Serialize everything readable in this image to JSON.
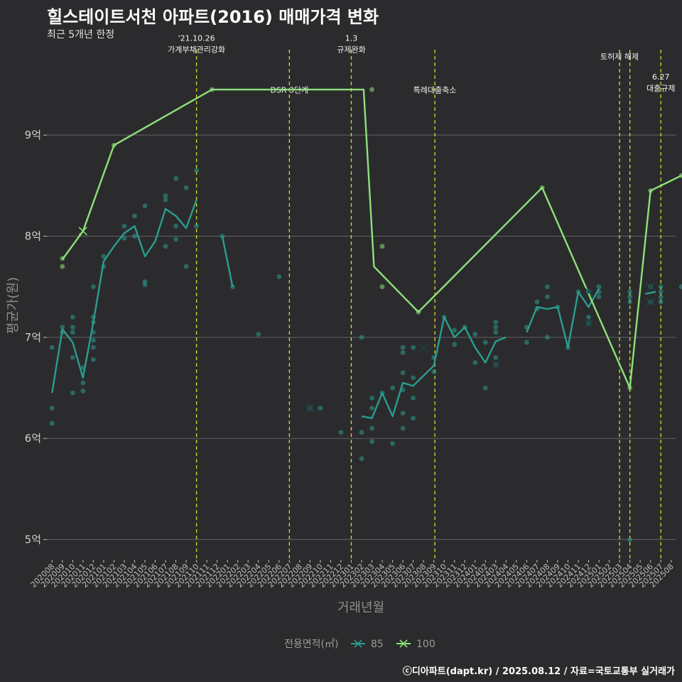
{
  "title": "힐스테이트서천 아파트(2016) 매매가격 변화",
  "subtitle": "최근 5개년 한정",
  "caption": "ⓒ디아파트(dapt.kr) / 2025.08.12 / 자료=국토교통부 실거래가",
  "chart_data": {
    "type": "line",
    "xlabel": "거래년월",
    "ylabel": "평균가(원)",
    "ylim": [
      4.8,
      9.9
    ],
    "yticks": [
      {
        "v": 5,
        "label": "5억"
      },
      {
        "v": 6,
        "label": "6억"
      },
      {
        "v": 7,
        "label": "7억"
      },
      {
        "v": 8,
        "label": "8억"
      },
      {
        "v": 9,
        "label": "9억"
      }
    ],
    "categories": [
      "202008",
      "202009",
      "202010",
      "202011",
      "202012",
      "202101",
      "202102",
      "202103",
      "202104",
      "202105",
      "202106",
      "202107",
      "202108",
      "202109",
      "202110",
      "202111",
      "202112",
      "202201",
      "202202",
      "202203",
      "202204",
      "202205",
      "202206",
      "202207",
      "202208",
      "202209",
      "202210",
      "202211",
      "202212",
      "202301",
      "202302",
      "202303",
      "202304",
      "202305",
      "202306",
      "202307",
      "202308",
      "202309",
      "202310",
      "202311",
      "202312",
      "202401",
      "202402",
      "202403",
      "202404",
      "202405",
      "202406",
      "202407",
      "202408",
      "202409",
      "202410",
      "202411",
      "202412",
      "202501",
      "202502",
      "202503",
      "202504",
      "202505",
      "202506",
      "202507",
      "202508"
    ],
    "legend_title": "전용면적(㎡)",
    "legend_position": "bottom",
    "series": [
      {
        "name": "85",
        "color": "#2a9d8f",
        "line_segments": [
          [
            [
              0,
              6.45
            ],
            [
              1,
              7.08
            ],
            [
              2,
              6.95
            ],
            [
              3,
              6.6
            ],
            [
              4,
              7.15
            ],
            [
              5,
              7.75
            ],
            [
              6,
              7.9
            ],
            [
              7,
              8.03
            ],
            [
              8,
              8.1
            ],
            [
              9,
              7.8
            ],
            [
              10,
              7.95
            ],
            [
              11,
              8.27
            ],
            [
              12,
              8.2
            ],
            [
              13,
              8.08
            ],
            [
              14,
              8.36
            ]
          ],
          [
            [
              16.5,
              8.0
            ],
            [
              17.5,
              7.5
            ]
          ],
          [
            [
              30,
              6.22
            ],
            [
              31,
              6.2
            ],
            [
              32,
              6.45
            ],
            [
              33,
              6.22
            ],
            [
              34,
              6.55
            ],
            [
              35,
              6.52
            ],
            [
              36,
              6.62
            ],
            [
              37,
              6.72
            ],
            [
              38,
              7.2
            ],
            [
              39,
              7.0
            ],
            [
              40,
              7.1
            ],
            [
              41,
              6.9
            ],
            [
              42,
              6.75
            ],
            [
              43,
              6.96
            ],
            [
              44,
              7.0
            ]
          ],
          [
            [
              46,
              7.05
            ],
            [
              47,
              7.3
            ],
            [
              48,
              7.28
            ],
            [
              49,
              7.3
            ],
            [
              50,
              6.9
            ],
            [
              51,
              7.45
            ],
            [
              52,
              7.3
            ],
            [
              53,
              7.48
            ]
          ],
          [
            [
              57.5,
              7.43
            ],
            [
              58.5,
              7.45
            ]
          ]
        ],
        "points": [
          [
            0,
            6.9
          ],
          [
            0,
            6.3
          ],
          [
            0,
            6.15
          ],
          [
            1,
            7.1
          ],
          [
            1,
            7.05
          ],
          [
            2,
            7.2
          ],
          [
            2,
            7.05
          ],
          [
            2,
            6.8
          ],
          [
            2,
            6.45
          ],
          [
            2,
            7.1
          ],
          [
            3,
            6.7
          ],
          [
            3,
            6.55
          ],
          [
            3,
            6.47
          ],
          [
            4,
            7.5
          ],
          [
            4,
            7.2
          ],
          [
            4,
            7.15
          ],
          [
            4,
            7.05
          ],
          [
            4,
            6.97
          ],
          [
            4,
            6.9
          ],
          [
            4,
            6.78
          ],
          [
            5,
            7.8
          ],
          [
            5,
            7.7
          ],
          [
            7,
            8.1
          ],
          [
            7,
            7.98
          ],
          [
            8,
            8.2
          ],
          [
            8,
            8.0
          ],
          [
            9,
            8.3
          ],
          [
            9,
            7.55
          ],
          [
            9,
            7.52
          ],
          [
            11,
            8.4
          ],
          [
            11,
            8.36
          ],
          [
            11,
            7.9
          ],
          [
            12,
            8.57
          ],
          [
            12,
            8.1
          ],
          [
            12,
            7.97
          ],
          [
            13,
            8.48
          ],
          [
            13,
            7.7
          ],
          [
            14,
            8.65
          ],
          [
            14,
            8.1
          ],
          [
            16.5,
            8.0
          ],
          [
            17.5,
            7.5
          ],
          [
            20,
            7.03
          ],
          [
            22,
            7.6
          ],
          [
            25,
            6.3
          ],
          [
            26,
            6.3
          ],
          [
            28,
            6.06
          ],
          [
            30,
            7.0
          ],
          [
            30,
            6.06
          ],
          [
            30,
            5.8
          ],
          [
            31,
            6.4
          ],
          [
            31,
            6.3
          ],
          [
            31,
            6.1
          ],
          [
            31,
            5.97
          ],
          [
            32,
            6.45
          ],
          [
            33,
            6.5
          ],
          [
            33,
            5.95
          ],
          [
            34,
            6.9
          ],
          [
            34,
            6.85
          ],
          [
            34,
            6.65
          ],
          [
            34,
            6.48
          ],
          [
            34,
            6.25
          ],
          [
            34,
            6.1
          ],
          [
            35,
            6.9
          ],
          [
            35,
            6.6
          ],
          [
            35,
            6.4
          ],
          [
            35,
            6.2
          ],
          [
            37,
            6.8
          ],
          [
            37,
            6.66
          ],
          [
            38,
            7.2
          ],
          [
            39,
            7.07
          ],
          [
            39,
            6.93
          ],
          [
            40,
            7.1
          ],
          [
            41,
            7.03
          ],
          [
            41,
            6.75
          ],
          [
            42,
            6.95
          ],
          [
            42,
            6.5
          ],
          [
            43,
            7.15
          ],
          [
            43,
            7.1
          ],
          [
            43,
            7.05
          ],
          [
            43,
            6.8
          ],
          [
            43,
            6.73
          ],
          [
            46,
            7.1
          ],
          [
            46,
            6.95
          ],
          [
            47,
            7.35
          ],
          [
            47,
            7.28
          ],
          [
            48,
            7.5
          ],
          [
            48,
            7.4
          ],
          [
            48,
            7.0
          ],
          [
            49,
            7.3
          ],
          [
            50,
            6.9
          ],
          [
            51,
            7.45
          ],
          [
            52,
            7.45
          ],
          [
            52,
            7.2
          ],
          [
            52,
            7.14
          ],
          [
            53,
            7.5
          ],
          [
            53,
            7.45
          ],
          [
            53,
            7.4
          ],
          [
            56,
            7.45
          ],
          [
            56,
            7.4
          ],
          [
            56,
            7.35
          ],
          [
            56,
            5.0
          ],
          [
            58,
            7.5
          ],
          [
            58,
            7.35
          ],
          [
            59,
            7.5
          ],
          [
            59,
            7.45
          ],
          [
            59,
            7.4
          ],
          [
            59,
            7.35
          ],
          [
            61,
            7.5
          ]
        ],
        "cross_marks": [
          [
            25,
            6.3
          ],
          [
            36,
            6.9
          ],
          [
            43,
            6.73
          ],
          [
            52,
            7.45
          ],
          [
            52,
            7.14
          ],
          [
            58,
            7.5
          ],
          [
            58,
            7.35
          ]
        ]
      },
      {
        "name": "100",
        "color": "#8ee07a",
        "line_segments": [
          [
            [
              1,
              7.77
            ],
            [
              3,
              8.05
            ],
            [
              6,
              8.9
            ],
            [
              15.5,
              9.45
            ],
            [
              30.2,
              9.45
            ],
            [
              31.2,
              7.7
            ],
            [
              35.5,
              7.25
            ],
            [
              47.5,
              8.48
            ],
            [
              56,
              6.5
            ],
            [
              58,
              8.45
            ],
            [
              61,
              8.6
            ]
          ]
        ],
        "points": [
          [
            1,
            7.78
          ],
          [
            1,
            7.7
          ],
          [
            6,
            8.9
          ],
          [
            15.5,
            9.45
          ],
          [
            31,
            9.45
          ],
          [
            32,
            7.9
          ],
          [
            32,
            7.5
          ],
          [
            35.5,
            7.25
          ],
          [
            47.5,
            8.48
          ],
          [
            56,
            6.5
          ],
          [
            58,
            8.45
          ],
          [
            61,
            8.6
          ]
        ],
        "cross_marks": [
          [
            3,
            8.05
          ]
        ]
      }
    ],
    "vlines": [
      {
        "x": 14,
        "label": "'21.10.26\n가계부채관리강화",
        "label_y": 9.93
      },
      {
        "x": 23,
        "label": "DSR 3단계",
        "label_y": 9.42
      },
      {
        "x": 29,
        "label": "1.3\n규제완화",
        "label_y": 9.93
      },
      {
        "x": 37.1,
        "label": "특례대출축소",
        "label_y": 9.42
      },
      {
        "x": 55,
        "label": "토허제 해제",
        "label_y": 9.75
      },
      {
        "x": 56,
        "label": "",
        "label_y": 0
      },
      {
        "x": 59,
        "label": "6.27\n대출규제",
        "label_y": 9.55
      }
    ],
    "grid": true
  }
}
